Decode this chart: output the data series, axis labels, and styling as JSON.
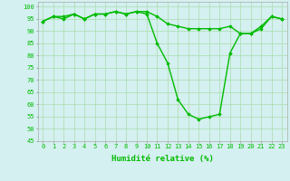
{
  "hours": [
    0,
    1,
    2,
    3,
    4,
    5,
    6,
    7,
    8,
    9,
    10,
    11,
    12,
    13,
    14,
    15,
    16,
    17,
    18,
    19,
    20,
    21,
    22,
    23
  ],
  "line1": [
    94,
    96,
    96,
    97,
    95,
    97,
    97,
    98,
    97,
    98,
    98,
    96,
    93,
    92,
    91,
    91,
    91,
    91,
    92,
    89,
    89,
    92,
    96,
    95
  ],
  "line2": [
    94,
    96,
    95,
    97,
    95,
    97,
    97,
    98,
    97,
    98,
    97,
    85,
    77,
    62,
    56,
    54,
    55,
    56,
    81,
    89,
    89,
    91,
    96,
    95
  ],
  "line_color": "#00bb00",
  "bg_color": "#d4f0f0",
  "grid_color": "#aaddaa",
  "xlabel": "Humidité relative (%)",
  "ylim": [
    45,
    102
  ],
  "xlim": [
    -0.5,
    23.5
  ],
  "yticks": [
    45,
    50,
    55,
    60,
    65,
    70,
    75,
    80,
    85,
    90,
    95,
    100
  ],
  "xticks": [
    0,
    1,
    2,
    3,
    4,
    5,
    6,
    7,
    8,
    9,
    10,
    11,
    12,
    13,
    14,
    15,
    16,
    17,
    18,
    19,
    20,
    21,
    22,
    23
  ],
  "marker": "D",
  "marker_size": 1.8,
  "line_width": 1.0,
  "xlabel_fontsize": 6.5,
  "tick_fontsize": 5.0
}
